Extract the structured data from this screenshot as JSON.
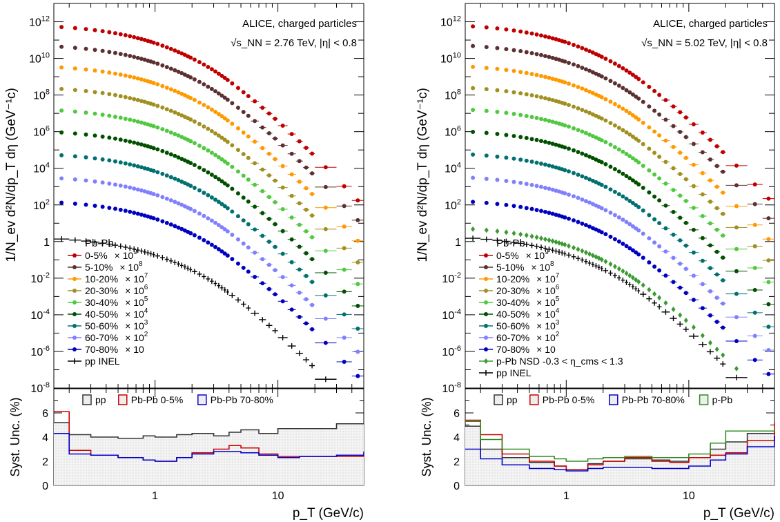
{
  "shared": {
    "y_label": "1/N_ev d²N/dp_T dη (GeV⁻¹c)",
    "syst_label": "Syst. Unc. (%)",
    "x_label": "p_T (GeV/c)",
    "x_tick_labels": [
      "1",
      "10"
    ],
    "header_label": "Pb-Pb",
    "pp_legend_label": "pp INEL"
  },
  "legend_rows": [
    {
      "cent": "0-5%",
      "scale": "× 10",
      "exp": "9"
    },
    {
      "cent": "5-10%",
      "scale": "× 10",
      "exp": "8"
    },
    {
      "cent": "10-20%",
      "scale": "× 10",
      "exp": "7"
    },
    {
      "cent": "20-30%",
      "scale": "× 10",
      "exp": "6"
    },
    {
      "cent": "30-40%",
      "scale": "× 10",
      "exp": "5"
    },
    {
      "cent": "40-50%",
      "scale": "× 10",
      "exp": "4"
    },
    {
      "cent": "50-60%",
      "scale": "× 10",
      "exp": "3"
    },
    {
      "cent": "60-70%",
      "scale": "× 10",
      "exp": "2"
    },
    {
      "cent": "70-80%",
      "scale": "× 10",
      "exp": ""
    }
  ],
  "chart_data": [
    {
      "type": "scatter",
      "title": "ALICE, charged particles",
      "energy_label": "√s_NN = 2.76 TeV, |η| < 0.8",
      "xlabel": "p_T (GeV/c)",
      "ylabel": "1/N_ev d²N/dp_T dη (GeV⁻¹c)",
      "x_scale": "log",
      "y_scale": "log",
      "xlim": [
        0.15,
        50
      ],
      "ylim": [
        1e-08,
        10000000000000.0
      ],
      "legend_position": "bottom-left",
      "colors": [
        "#c00000",
        "#5c3030",
        "#ff9900",
        "#a09020",
        "#50c840",
        "#005000",
        "#007070",
        "#8080ff",
        "#0000c0",
        "#000000"
      ],
      "series": [
        {
          "name": "0-5%",
          "scale_exp": 9,
          "norm": 1200,
          "n": 1.0
        },
        {
          "name": "5-10%",
          "scale_exp": 8,
          "norm": 1000,
          "n": 1.0
        },
        {
          "name": "10-20%",
          "scale_exp": 7,
          "norm": 750,
          "n": 1.0
        },
        {
          "name": "20-30%",
          "scale_exp": 6,
          "norm": 500,
          "n": 1.0
        },
        {
          "name": "30-40%",
          "scale_exp": 5,
          "norm": 330,
          "n": 1.0
        },
        {
          "name": "40-50%",
          "scale_exp": 4,
          "norm": 210,
          "n": 1.0
        },
        {
          "name": "50-60%",
          "scale_exp": 3,
          "norm": 120,
          "n": 1.0
        },
        {
          "name": "60-70%",
          "scale_exp": 2,
          "norm": 65,
          "n": 1.0
        },
        {
          "name": "70-80%",
          "scale_exp": 1,
          "norm": 31,
          "n": 1.0
        },
        {
          "name": "pp INEL",
          "scale_exp": 0,
          "norm": 3.2,
          "n": 1.0
        }
      ],
      "syst": {
        "ylabel": "Syst. Unc. (%)",
        "ylim": [
          0,
          8
        ],
        "legend": [
          "pp",
          "Pb-Pb 0-5%",
          "Pb-Pb 70-80%"
        ],
        "series": [
          {
            "name": "pp",
            "color": "#333333",
            "pts": [
              [
                0.15,
                5.2
              ],
              [
                0.2,
                4.2
              ],
              [
                0.3,
                4.0
              ],
              [
                0.5,
                3.9
              ],
              [
                0.8,
                4.1
              ],
              [
                1,
                4.0
              ],
              [
                1.5,
                4.2
              ],
              [
                2,
                4.3
              ],
              [
                3,
                4.1
              ],
              [
                4,
                4.4
              ],
              [
                5,
                4.6
              ],
              [
                7,
                4.3
              ],
              [
                10,
                4.7
              ],
              [
                15,
                4.7
              ],
              [
                20,
                4.7
              ],
              [
                30,
                5.1
              ],
              [
                50,
                5.1
              ]
            ]
          },
          {
            "name": "Pb-Pb 0-5%",
            "color": "#cc0000",
            "pts": [
              [
                0.15,
                6.1
              ],
              [
                0.2,
                2.9
              ],
              [
                0.3,
                2.5
              ],
              [
                0.5,
                2.3
              ],
              [
                0.8,
                2.1
              ],
              [
                1,
                2.0
              ],
              [
                1.5,
                2.3
              ],
              [
                2,
                2.7
              ],
              [
                3,
                3.0
              ],
              [
                4,
                3.3
              ],
              [
                5,
                3.1
              ],
              [
                7,
                2.6
              ],
              [
                10,
                2.4
              ],
              [
                15,
                2.4
              ],
              [
                20,
                2.4
              ],
              [
                30,
                2.4
              ],
              [
                50,
                2.5
              ]
            ]
          },
          {
            "name": "Pb-Pb 70-80%",
            "color": "#0000cc",
            "pts": [
              [
                0.15,
                4.3
              ],
              [
                0.2,
                2.6
              ],
              [
                0.3,
                2.5
              ],
              [
                0.5,
                2.3
              ],
              [
                0.8,
                2.1
              ],
              [
                1,
                2.0
              ],
              [
                1.5,
                2.3
              ],
              [
                2,
                2.6
              ],
              [
                3,
                2.8
              ],
              [
                4,
                2.8
              ],
              [
                5,
                2.7
              ],
              [
                7,
                2.5
              ],
              [
                10,
                2.3
              ],
              [
                15,
                2.4
              ],
              [
                20,
                2.4
              ],
              [
                30,
                2.5
              ],
              [
                50,
                2.8
              ]
            ]
          }
        ]
      }
    },
    {
      "type": "scatter",
      "title": "ALICE, charged particles",
      "energy_label": "√s_NN = 5.02 TeV, |η| < 0.8",
      "xlabel": "p_T (GeV/c)",
      "ylabel": "1/N_ev d²N/dp_T dη (GeV⁻¹c)",
      "x_scale": "log",
      "y_scale": "log",
      "xlim": [
        0.15,
        50
      ],
      "ylim": [
        1e-08,
        10000000000000.0
      ],
      "legend_position": "bottom-left",
      "extra_legend_label": "p-Pb NSD -0.3 < η_cms < 1.3",
      "colors": [
        "#c00000",
        "#5c3030",
        "#ff9900",
        "#a09020",
        "#50c840",
        "#005000",
        "#007070",
        "#8080ff",
        "#0000c0",
        "#3a9a30",
        "#000000"
      ],
      "series": [
        {
          "name": "0-5%",
          "scale_exp": 9,
          "norm": 1300,
          "n": 0.75
        },
        {
          "name": "5-10%",
          "scale_exp": 8,
          "norm": 1100,
          "n": 0.75
        },
        {
          "name": "10-20%",
          "scale_exp": 7,
          "norm": 800,
          "n": 0.75
        },
        {
          "name": "20-30%",
          "scale_exp": 6,
          "norm": 550,
          "n": 0.75
        },
        {
          "name": "30-40%",
          "scale_exp": 5,
          "norm": 360,
          "n": 0.75
        },
        {
          "name": "40-50%",
          "scale_exp": 4,
          "norm": 225,
          "n": 0.75
        },
        {
          "name": "50-60%",
          "scale_exp": 3,
          "norm": 130,
          "n": 0.75
        },
        {
          "name": "60-70%",
          "scale_exp": 2,
          "norm": 70,
          "n": 0.75
        },
        {
          "name": "70-80%",
          "scale_exp": 1,
          "norm": 34,
          "n": 0.75
        },
        {
          "name": "p-Pb NSD",
          "scale_exp": 0,
          "norm": 11,
          "n": 0.8
        },
        {
          "name": "pp INEL",
          "scale_exp": 0,
          "norm": 3.5,
          "n": 0.75
        }
      ],
      "syst": {
        "ylabel": "Syst. Unc. (%)",
        "ylim": [
          0,
          8
        ],
        "legend": [
          "pp",
          "Pb-Pb 0-5%",
          "Pb-Pb 70-80%",
          "p-Pb"
        ],
        "series": [
          {
            "name": "pp",
            "color": "#333333",
            "pts": [
              [
                0.15,
                4.9
              ],
              [
                0.2,
                3.0
              ],
              [
                0.3,
                2.3
              ],
              [
                0.5,
                1.9
              ],
              [
                0.8,
                1.6
              ],
              [
                1,
                1.3
              ],
              [
                1.5,
                1.8
              ],
              [
                2,
                2.0
              ],
              [
                3,
                2.2
              ],
              [
                4,
                2.2
              ],
              [
                5,
                2.1
              ],
              [
                7,
                2.0
              ],
              [
                10,
                2.3
              ],
              [
                15,
                3.0
              ],
              [
                20,
                3.6
              ],
              [
                30,
                4.3
              ],
              [
                50,
                4.5
              ]
            ]
          },
          {
            "name": "Pb-Pb 0-5%",
            "color": "#cc0000",
            "pts": [
              [
                0.15,
                5.4
              ],
              [
                0.2,
                4.2
              ],
              [
                0.3,
                2.6
              ],
              [
                0.5,
                2.0
              ],
              [
                0.8,
                1.6
              ],
              [
                1,
                1.3
              ],
              [
                1.5,
                1.7
              ],
              [
                2,
                2.0
              ],
              [
                3,
                2.3
              ],
              [
                4,
                2.3
              ],
              [
                5,
                2.0
              ],
              [
                7,
                1.9
              ],
              [
                10,
                2.3
              ],
              [
                15,
                2.5
              ],
              [
                20,
                2.7
              ],
              [
                30,
                3.7
              ],
              [
                50,
                5.2
              ]
            ]
          },
          {
            "name": "Pb-Pb 70-80%",
            "color": "#0000cc",
            "pts": [
              [
                0.15,
                3.0
              ],
              [
                0.2,
                2.2
              ],
              [
                0.3,
                1.7
              ],
              [
                0.5,
                1.4
              ],
              [
                0.8,
                1.3
              ],
              [
                1,
                1.2
              ],
              [
                1.5,
                1.4
              ],
              [
                2,
                1.5
              ],
              [
                3,
                1.5
              ],
              [
                4,
                1.5
              ],
              [
                5,
                1.4
              ],
              [
                7,
                1.4
              ],
              [
                10,
                1.6
              ],
              [
                15,
                2.1
              ],
              [
                20,
                2.6
              ],
              [
                30,
                3.2
              ],
              [
                50,
                4.1
              ]
            ]
          },
          {
            "name": "p-Pb",
            "color": "#2e8b20",
            "pts": [
              [
                0.15,
                5.3
              ],
              [
                0.2,
                3.8
              ],
              [
                0.3,
                3.0
              ],
              [
                0.5,
                2.4
              ],
              [
                0.8,
                2.2
              ],
              [
                1,
                2.0
              ],
              [
                1.5,
                2.2
              ],
              [
                2,
                2.3
              ],
              [
                3,
                2.4
              ],
              [
                4,
                2.4
              ],
              [
                5,
                2.3
              ],
              [
                7,
                2.3
              ],
              [
                10,
                2.6
              ],
              [
                15,
                3.5
              ],
              [
                20,
                4.5
              ],
              [
                30,
                4.5
              ],
              [
                50,
                4.6
              ]
            ]
          }
        ]
      }
    }
  ]
}
